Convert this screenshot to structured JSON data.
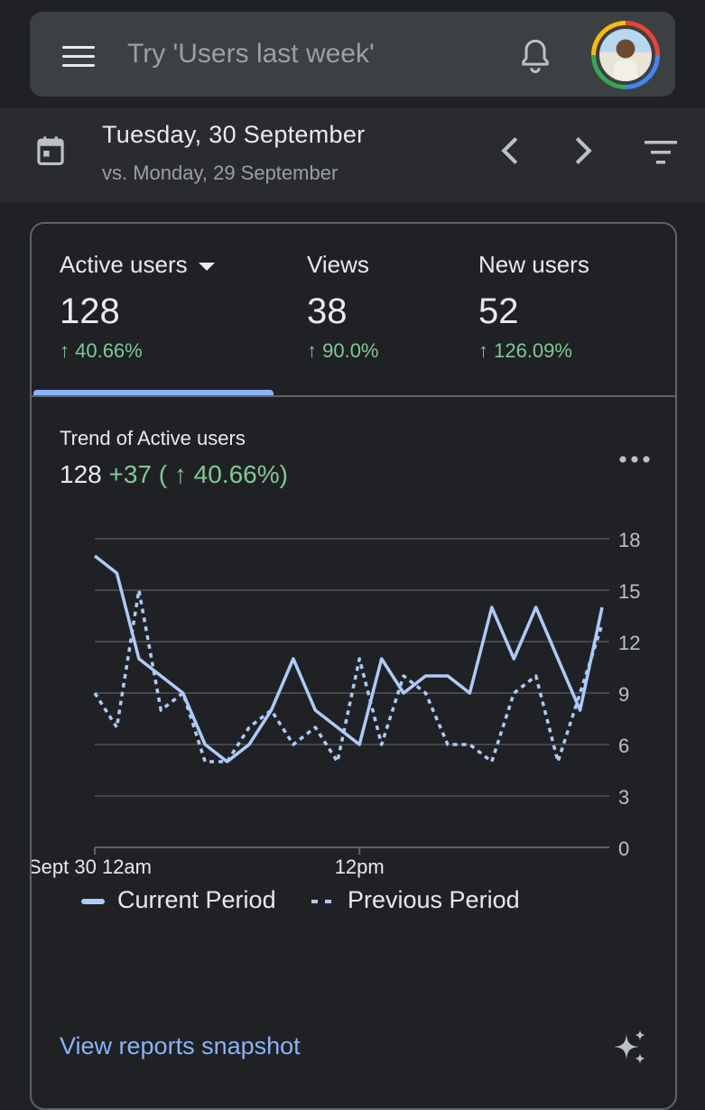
{
  "header": {
    "search_placeholder": "Try 'Users last week'",
    "menu_icon": "hamburger-menu-icon",
    "notification_icon": "bell-icon",
    "avatar_icon": "user-avatar"
  },
  "date_bar": {
    "date": "Tuesday, 30 September",
    "comparison": "vs. Monday, 29 September",
    "icons": [
      "calendar-icon",
      "chevron-left-icon",
      "chevron-right-icon",
      "filter-icon"
    ]
  },
  "metrics": [
    {
      "label": "Active users",
      "value": "128",
      "delta": "↑ 40.66%",
      "selected": true
    },
    {
      "label": "Views",
      "value": "38",
      "delta": "↑ 90.0%",
      "selected": false
    },
    {
      "label": "New users",
      "value": "52",
      "delta": "↑ 126.09%",
      "selected": false
    }
  ],
  "trend": {
    "title": "Trend of Active users",
    "total": "128",
    "change": "+37",
    "change_pct": "( ↑ 40.66%)"
  },
  "chart_data": {
    "type": "line",
    "x": [
      0,
      1,
      2,
      3,
      4,
      5,
      6,
      7,
      8,
      9,
      10,
      11,
      12,
      13,
      14,
      15,
      16,
      17,
      18,
      19,
      20,
      21,
      22,
      23
    ],
    "x_tick_labels": [
      {
        "x": 0,
        "label": "Sept 30 12am"
      },
      {
        "x": 12,
        "label": "12pm"
      }
    ],
    "y_ticks": [
      0,
      3,
      6,
      9,
      12,
      15,
      18
    ],
    "ylim": [
      0,
      18
    ],
    "series": [
      {
        "name": "Current Period",
        "style": "solid",
        "color": "#aecbfa",
        "values": [
          17,
          16,
          11,
          10,
          9,
          6,
          5,
          6,
          8,
          11,
          8,
          7,
          6,
          11,
          9,
          10,
          10,
          9,
          14,
          11,
          14,
          11,
          8,
          14
        ]
      },
      {
        "name": "Previous Period",
        "style": "dotted",
        "color": "#aecbfa",
        "values": [
          9,
          7,
          15,
          8,
          9,
          5,
          5,
          7,
          8,
          6,
          7,
          5,
          11,
          6,
          10,
          9,
          6,
          6,
          5,
          9,
          10,
          5,
          9,
          13
        ]
      }
    ],
    "legend": {
      "current": "Current Period",
      "previous": "Previous Period"
    }
  },
  "footer": {
    "link": "View reports snapshot",
    "sparkle_icon": "sparkle-icon"
  }
}
